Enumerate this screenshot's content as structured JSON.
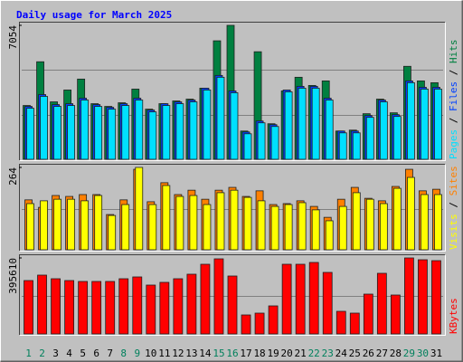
{
  "chart_data": [
    {
      "type": "bar",
      "title": "Daily usage for March 2025",
      "legend_separator": "/",
      "ylim": [
        0,
        7054
      ],
      "yticks": [
        7054
      ],
      "series": [
        {
          "name": "Hits",
          "color": "#008040",
          "values": [
            2832,
            5136,
            3024,
            3648,
            4224,
            2928,
            2784,
            2976,
            3696,
            2640,
            2928,
            3072,
            3168,
            3744,
            6240,
            7054,
            1488,
            5664,
            1872,
            3600,
            4320,
            3888,
            4128,
            1488,
            1536,
            2400,
            3168,
            2448,
            4896,
            4128,
            4032
          ]
        },
        {
          "name": "Files",
          "color": "#0040ff",
          "values": [
            2784,
            3408,
            2880,
            2928,
            3216,
            2880,
            2736,
            2928,
            3216,
            2592,
            2928,
            3024,
            3120,
            3744,
            4416,
            3600,
            1440,
            2016,
            1824,
            3648,
            3840,
            3840,
            3216,
            1488,
            1488,
            2304,
            3120,
            2352,
            4128,
            3792,
            3792
          ]
        },
        {
          "name": "Pages",
          "color": "#00e0ff",
          "values": [
            2688,
            3312,
            2784,
            2832,
            3120,
            2784,
            2640,
            2832,
            3120,
            2496,
            2832,
            2928,
            3024,
            3648,
            4320,
            3504,
            1344,
            1920,
            1728,
            3552,
            3744,
            3744,
            3120,
            1392,
            1392,
            2208,
            3024,
            2256,
            4032,
            3696,
            3696
          ]
        }
      ]
    },
    {
      "type": "bar",
      "legend_separator": "/",
      "ylim": [
        0,
        264
      ],
      "yticks": [
        264
      ],
      "series": [
        {
          "name": "Sites",
          "color": "#ff8000",
          "values": [
            160,
            136,
            174,
            171,
            177,
            177,
            113,
            160,
            258,
            154,
            215,
            177,
            191,
            162,
            191,
            200,
            171,
            189,
            145,
            148,
            157,
            139,
            104,
            162,
            200,
            165,
            157,
            203,
            258,
            189,
            194
          ]
        },
        {
          "name": "Visits",
          "color": "#ffff00",
          "values": [
            148,
            157,
            162,
            162,
            157,
            174,
            110,
            145,
            264,
            145,
            206,
            171,
            174,
            145,
            183,
            191,
            168,
            157,
            139,
            145,
            151,
            128,
            93,
            139,
            183,
            162,
            148,
            197,
            232,
            177,
            177
          ]
        }
      ]
    },
    {
      "type": "bar",
      "ylim": [
        0,
        395610
      ],
      "yticks": [
        395610
      ],
      "categories": [
        "1",
        "2",
        "3",
        "4",
        "5",
        "6",
        "7",
        "8",
        "9",
        "10",
        "11",
        "12",
        "13",
        "14",
        "15",
        "16",
        "17",
        "18",
        "19",
        "20",
        "21",
        "22",
        "23",
        "24",
        "25",
        "26",
        "27",
        "28",
        "29",
        "30",
        "31"
      ],
      "category_colors": [
        "#00805c",
        "#00805c",
        "#000000",
        "#000000",
        "#000000",
        "#000000",
        "#000000",
        "#00805c",
        "#00805c",
        "#000000",
        "#000000",
        "#000000",
        "#000000",
        "#000000",
        "#00805c",
        "#00805c",
        "#000000",
        "#000000",
        "#000000",
        "#000000",
        "#000000",
        "#00805c",
        "#00805c",
        "#000000",
        "#000000",
        "#000000",
        "#000000",
        "#000000",
        "#00805c",
        "#00805c",
        "#000000"
      ],
      "series": [
        {
          "name": "KBytes",
          "color": "#ff0000",
          "values": [
            277890,
            306150,
            287310,
            277890,
            273180,
            273180,
            273180,
            287310,
            296730,
            254340,
            268470,
            287310,
            310860,
            362670,
            390930,
            301440,
            98910,
            108330,
            146010,
            362670,
            362670,
            372090,
            320280,
            117750,
            108330,
            207240,
            315570,
            202530,
            395610,
            386190,
            381480
          ]
        }
      ]
    }
  ]
}
